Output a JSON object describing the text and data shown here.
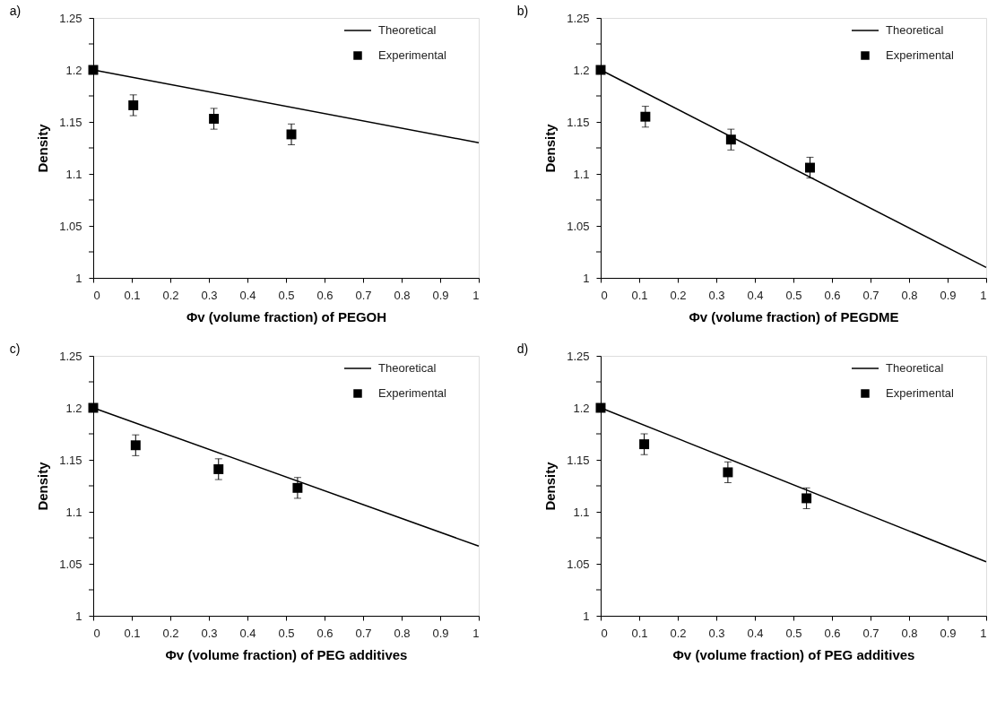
{
  "chart_data": [
    {
      "type": "line",
      "title": "a)",
      "xlabel": "Φv (volume fraction) of PEGOH",
      "ylabel": "Density",
      "xlim": [
        0,
        1
      ],
      "ylim": [
        1,
        1.25
      ],
      "xticks": [
        0,
        0.1,
        0.2,
        0.3,
        0.4,
        0.5,
        0.6,
        0.7,
        0.8,
        0.9,
        1
      ],
      "yticks": [
        1,
        {
          "value": 1.025,
          "label": null
        },
        1.05,
        {
          "value": 1.075,
          "label": null
        },
        1.1,
        {
          "value": 1.125,
          "label": null
        },
        1.15,
        {
          "value": 1.175,
          "label": null
        },
        1.2,
        {
          "value": 1.225,
          "label": null
        },
        1.25
      ],
      "grid": false,
      "legend": "top right",
      "series": [
        {
          "name": "Theoretical",
          "type": "line",
          "color": "#000000",
          "line_style": "solid",
          "x": [
            0,
            1
          ],
          "values": [
            1.2,
            1.13
          ]
        },
        {
          "name": "Experimental",
          "type": "scatter",
          "marker": "square",
          "color": "#000000",
          "x": [
            0,
            0.104,
            0.313,
            0.514
          ],
          "values": [
            1.2,
            1.166,
            1.153,
            1.138
          ],
          "errors": [
            null,
            0.01,
            0.01,
            0.01
          ]
        }
      ]
    },
    {
      "type": "line",
      "title": "b)",
      "xlabel": "Φv (volume fraction) of PEGDME",
      "ylabel": "Density",
      "xlim": [
        0,
        1
      ],
      "ylim": [
        1,
        1.25
      ],
      "xticks": [
        0,
        0.1,
        0.2,
        0.3,
        0.4,
        0.5,
        0.6,
        0.7,
        0.8,
        0.9,
        1
      ],
      "yticks": [
        1,
        {
          "value": 1.025,
          "label": null
        },
        1.05,
        {
          "value": 1.075,
          "label": null
        },
        1.1,
        {
          "value": 1.125,
          "label": null
        },
        1.15,
        {
          "value": 1.175,
          "label": null
        },
        1.2,
        {
          "value": 1.225,
          "label": null
        },
        1.25
      ],
      "grid": false,
      "legend": "top right",
      "series": [
        {
          "name": "Theoretical",
          "type": "line",
          "color": "#000000",
          "line_style": "solid",
          "x": [
            0,
            1
          ],
          "values": [
            1.2,
            1.01
          ]
        },
        {
          "name": "Experimental",
          "type": "scatter",
          "marker": "square",
          "color": "#000000",
          "x": [
            0,
            0.116,
            0.338,
            0.543
          ],
          "values": [
            1.2,
            1.155,
            1.133,
            1.106
          ],
          "errors": [
            null,
            0.01,
            0.01,
            0.01
          ]
        }
      ]
    },
    {
      "type": "line",
      "title": "c)",
      "xlabel": "Φv (volume fraction) of PEG additives",
      "ylabel": "Density",
      "xlim": [
        0,
        1
      ],
      "ylim": [
        1,
        1.25
      ],
      "xticks": [
        0,
        0.1,
        0.2,
        0.3,
        0.4,
        0.5,
        0.6,
        0.7,
        0.8,
        0.9,
        1
      ],
      "yticks": [
        1,
        {
          "value": 1.025,
          "label": null
        },
        1.05,
        {
          "value": 1.075,
          "label": null
        },
        1.1,
        {
          "value": 1.125,
          "label": null
        },
        1.15,
        {
          "value": 1.175,
          "label": null
        },
        1.2,
        {
          "value": 1.225,
          "label": null
        },
        1.25
      ],
      "grid": false,
      "legend": "top right",
      "series": [
        {
          "name": "Theoretical",
          "type": "line",
          "color": "#000000",
          "line_style": "solid",
          "x": [
            0,
            1
          ],
          "values": [
            1.2,
            1.067
          ]
        },
        {
          "name": "Experimental",
          "type": "scatter",
          "marker": "square",
          "color": "#000000",
          "x": [
            0,
            0.11,
            0.325,
            0.53
          ],
          "values": [
            1.2,
            1.164,
            1.141,
            1.123
          ],
          "errors": [
            null,
            0.01,
            0.01,
            0.01
          ]
        }
      ]
    },
    {
      "type": "line",
      "title": "d)",
      "xlabel": "Φv (volume fraction) of PEG additives",
      "ylabel": "Density",
      "xlim": [
        0,
        1
      ],
      "ylim": [
        1,
        1.25
      ],
      "xticks": [
        0,
        0.1,
        0.2,
        0.3,
        0.4,
        0.5,
        0.6,
        0.7,
        0.8,
        0.9,
        1
      ],
      "yticks": [
        1,
        {
          "value": 1.025,
          "label": null
        },
        1.05,
        {
          "value": 1.075,
          "label": null
        },
        1.1,
        {
          "value": 1.125,
          "label": null
        },
        1.15,
        {
          "value": 1.175,
          "label": null
        },
        1.2,
        {
          "value": 1.225,
          "label": null
        },
        1.25
      ],
      "grid": false,
      "legend": "top right",
      "series": [
        {
          "name": "Theoretical",
          "type": "line",
          "color": "#000000",
          "line_style": "solid",
          "x": [
            0,
            1
          ],
          "values": [
            1.2,
            1.052
          ]
        },
        {
          "name": "Experimental",
          "type": "scatter",
          "marker": "square",
          "color": "#000000",
          "x": [
            0,
            0.113,
            0.33,
            0.534
          ],
          "values": [
            1.2,
            1.165,
            1.138,
            1.113
          ],
          "errors": [
            null,
            0.01,
            0.01,
            0.01
          ]
        }
      ]
    }
  ]
}
